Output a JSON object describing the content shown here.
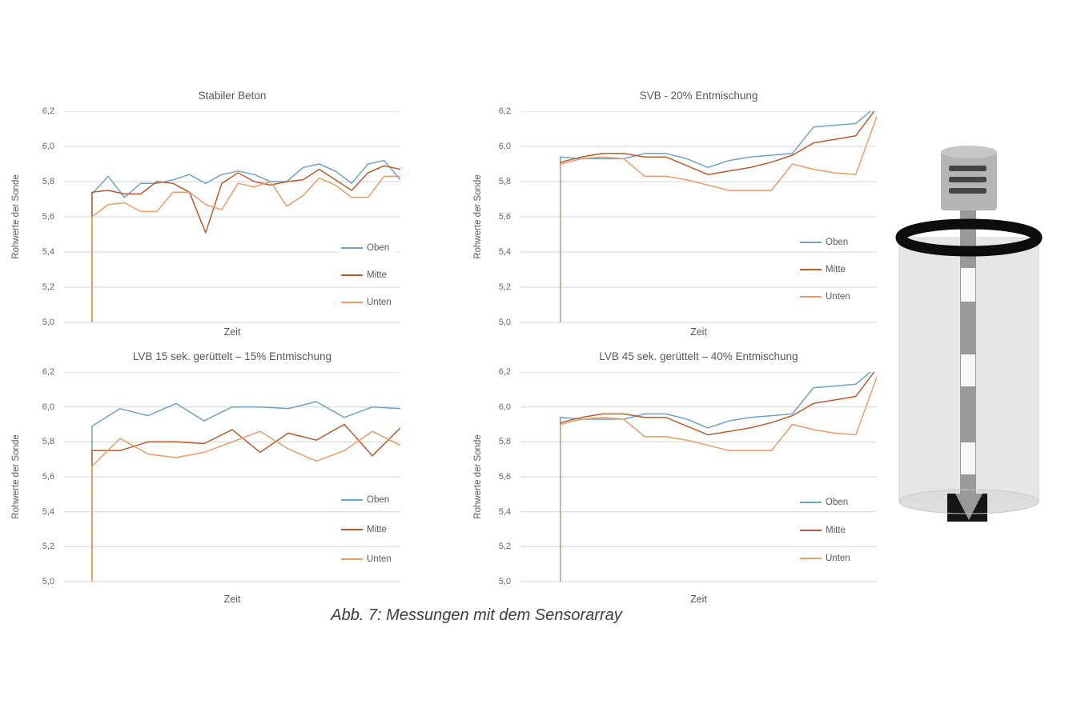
{
  "figure": {
    "caption": "Abb. 7: Messungen mit dem Sensorarray"
  },
  "colors": {
    "oben": "#6FA2C9",
    "mitte": "#B85C2E",
    "unten": "#E99C68",
    "grid": "#D4D4D4",
    "text": "#595959"
  },
  "chart_data": [
    {
      "type": "line",
      "title": "Stabiler Beton",
      "xlabel": "Zeit",
      "ylabel": "Rohwerte der Sonde",
      "ylim": [
        5.0,
        6.2
      ],
      "grid": true,
      "legend_position": "inside-right",
      "yticks": [
        {
          "v": 6.2,
          "label": "6,2"
        },
        {
          "v": 6.0,
          "label": "6,0"
        },
        {
          "v": 5.8,
          "label": "5,8"
        },
        {
          "v": 5.6,
          "label": "5,6"
        },
        {
          "v": 5.4,
          "label": "5,4"
        },
        {
          "v": 5.2,
          "label": "5,2"
        },
        {
          "v": 5.0,
          "label": "5,0"
        }
      ],
      "series": [
        {
          "name": "Oben",
          "color": "oben",
          "values": [
            5.0,
            5.73,
            5.83,
            5.71,
            5.79,
            5.79,
            5.81,
            5.84,
            5.79,
            5.84,
            5.86,
            5.84,
            5.8,
            5.8,
            5.88,
            5.9,
            5.86,
            5.79,
            5.9,
            5.92,
            5.81
          ]
        },
        {
          "name": "Mitte",
          "color": "mitte",
          "values": [
            5.0,
            5.74,
            5.75,
            5.73,
            5.73,
            5.8,
            5.79,
            5.74,
            5.51,
            5.79,
            5.85,
            5.8,
            5.78,
            5.8,
            5.81,
            5.87,
            5.81,
            5.75,
            5.85,
            5.89,
            5.87
          ]
        },
        {
          "name": "Unten",
          "color": "unten",
          "values": [
            5.0,
            5.6,
            5.67,
            5.68,
            5.63,
            5.63,
            5.74,
            5.74,
            5.67,
            5.64,
            5.79,
            5.77,
            5.8,
            5.66,
            5.72,
            5.82,
            5.78,
            5.71,
            5.71,
            5.83,
            5.83
          ]
        }
      ]
    },
    {
      "type": "line",
      "title": "SVB - 20% Entmischung",
      "xlabel": "Zeit",
      "ylabel": "Rohwerte der Sonde",
      "ylim": [
        5.0,
        6.2
      ],
      "grid": true,
      "legend_position": "inside-right",
      "yticks": [
        {
          "v": 6.2,
          "label": "6,2"
        },
        {
          "v": 6.0,
          "label": "6,0"
        },
        {
          "v": 5.8,
          "label": "5,8"
        },
        {
          "v": 5.6,
          "label": "5,6"
        },
        {
          "v": 5.4,
          "label": "5,4"
        },
        {
          "v": 5.2,
          "label": "5,2"
        },
        {
          "v": 5.0,
          "label": "5,0"
        }
      ],
      "series": [
        {
          "name": "Oben",
          "color": "oben",
          "values": [
            5.0,
            5.94,
            5.93,
            5.93,
            5.93,
            5.96,
            5.96,
            5.93,
            5.88,
            5.92,
            5.94,
            5.95,
            5.96,
            6.11,
            6.12,
            6.13,
            6.23
          ]
        },
        {
          "name": "Mitte",
          "color": "mitte",
          "values": [
            5.0,
            5.91,
            5.94,
            5.96,
            5.96,
            5.94,
            5.94,
            5.89,
            5.84,
            5.86,
            5.88,
            5.91,
            5.95,
            6.02,
            6.04,
            6.06,
            6.22
          ]
        },
        {
          "name": "Unten",
          "color": "unten",
          "values": [
            5.0,
            5.9,
            5.93,
            5.94,
            5.93,
            5.83,
            5.83,
            5.81,
            5.78,
            5.75,
            5.75,
            5.75,
            5.9,
            5.87,
            5.85,
            5.84,
            6.17
          ]
        }
      ]
    },
    {
      "type": "line",
      "title": "LVB 15 sek. gerüttelt – 15% Entmischung",
      "xlabel": "Zeit",
      "ylabel": "Rohwerte der Sonde",
      "ylim": [
        5.0,
        6.2
      ],
      "grid": true,
      "legend_position": "inside-right",
      "yticks": [
        {
          "v": 6.2,
          "label": "6,2"
        },
        {
          "v": 6.0,
          "label": "6,0"
        },
        {
          "v": 5.8,
          "label": "5,8"
        },
        {
          "v": 5.6,
          "label": "5,6"
        },
        {
          "v": 5.4,
          "label": "5,4"
        },
        {
          "v": 5.2,
          "label": "5,2"
        },
        {
          "v": 5.0,
          "label": "5,0"
        }
      ],
      "series": [
        {
          "name": "Oben",
          "color": "oben",
          "values": [
            5.0,
            5.89,
            5.99,
            5.95,
            6.02,
            5.92,
            6.0,
            6.0,
            5.99,
            6.03,
            5.94,
            6.0,
            5.99
          ]
        },
        {
          "name": "Mitte",
          "color": "mitte",
          "values": [
            5.0,
            5.75,
            5.75,
            5.8,
            5.8,
            5.79,
            5.87,
            5.74,
            5.85,
            5.81,
            5.9,
            5.72,
            5.88
          ]
        },
        {
          "name": "Unten",
          "color": "unten",
          "values": [
            5.0,
            5.66,
            5.82,
            5.73,
            5.71,
            5.74,
            5.8,
            5.86,
            5.76,
            5.69,
            5.75,
            5.86,
            5.78
          ]
        }
      ]
    },
    {
      "type": "line",
      "title": "LVB 45 sek. gerüttelt – 40% Entmischung",
      "xlabel": "Zeit",
      "ylabel": "Rohwerte der Sonde",
      "ylim": [
        5.0,
        6.2
      ],
      "grid": true,
      "legend_position": "inside-right",
      "yticks": [
        {
          "v": 6.2,
          "label": "6,2"
        },
        {
          "v": 6.0,
          "label": "6,0"
        },
        {
          "v": 5.8,
          "label": "5,8"
        },
        {
          "v": 5.6,
          "label": "5,6"
        },
        {
          "v": 5.4,
          "label": "5,4"
        },
        {
          "v": 5.2,
          "label": "5,2"
        },
        {
          "v": 5.0,
          "label": "5,0"
        }
      ],
      "series": [
        {
          "name": "Oben",
          "color": "oben",
          "values": [
            5.0,
            5.94,
            5.93,
            5.93,
            5.93,
            5.96,
            5.96,
            5.93,
            5.88,
            5.92,
            5.94,
            5.95,
            5.96,
            6.11,
            6.12,
            6.13,
            6.23
          ]
        },
        {
          "name": "Mitte",
          "color": "mitte",
          "values": [
            5.0,
            5.91,
            5.94,
            5.96,
            5.96,
            5.94,
            5.94,
            5.89,
            5.84,
            5.86,
            5.88,
            5.91,
            5.95,
            6.02,
            6.04,
            6.06,
            6.22
          ]
        },
        {
          "name": "Unten",
          "color": "unten",
          "values": [
            5.0,
            5.9,
            5.93,
            5.94,
            5.93,
            5.83,
            5.83,
            5.81,
            5.78,
            5.75,
            5.75,
            5.75,
            5.9,
            5.87,
            5.85,
            5.84,
            6.17
          ]
        }
      ]
    }
  ],
  "illustration": {
    "label": "sensor-probe-in-concrete-cylinder"
  }
}
